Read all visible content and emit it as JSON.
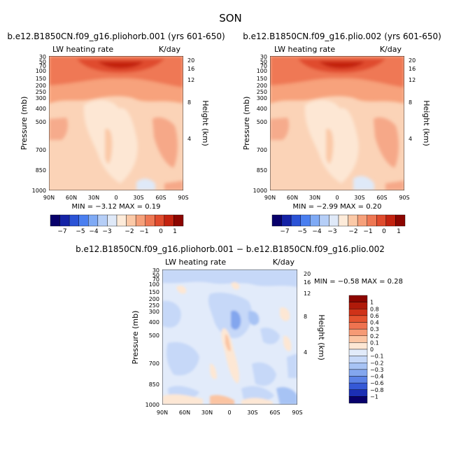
{
  "figure": {
    "title": "SON",
    "panels": [
      {
        "id": "top-left",
        "case": "b.e12.B1850CN.f09_g16.pliohorb.001 (yrs 601-650)",
        "variable": "LW heating rate",
        "units": "K/day",
        "ylabel": "Pressure (mb)",
        "ylabel2": "Height (km)",
        "stats": "MIN = −3.12 MAX = 0.19"
      },
      {
        "id": "top-right",
        "case": "b.e12.B1850CN.f09_g16.plio.002 (yrs 601-650)",
        "variable": "LW heating rate",
        "units": "K/day",
        "ylabel": "Pressure (mb)",
        "ylabel2": "Height (km)",
        "stats": "MIN = −2.99 MAX = 0.20"
      },
      {
        "id": "bottom",
        "case": "b.e12.B1850CN.f09_g16.pliohorb.001 − b.e12.B1850CN.f09_g16.plio.002",
        "variable": "LW heating rate",
        "units": "K/day",
        "ylabel": "Pressure (mb)",
        "ylabel2": "Height (km)",
        "stats": "MIN = −0.58 MAX = 0.28"
      }
    ]
  },
  "chart_data": [
    {
      "type": "heatmap",
      "panel": "top-left",
      "x_ticks": [
        "90N",
        "60N",
        "30N",
        "0",
        "30S",
        "60S",
        "90S"
      ],
      "y_ticks": [
        "30",
        "50",
        "70",
        "100",
        "150",
        "200",
        "250",
        "300",
        "400",
        "500",
        "700",
        "850",
        "1000"
      ],
      "y2_ticks": [
        "20",
        "16",
        "12",
        "8",
        "4"
      ],
      "xlim": [
        90,
        -90
      ],
      "ylim": [
        1000,
        30
      ],
      "y_scale": "log",
      "colorbar": {
        "labels": [
          "−7",
          "−5",
          "−4",
          "−3",
          "−2",
          "−1",
          "0",
          "1"
        ],
        "colors": [
          "#08006b",
          "#1523a6",
          "#2b53d6",
          "#4a7ff0",
          "#7faaf5",
          "#b5cef7",
          "#dfe9f8",
          "#fdebd9",
          "#fbc9a7",
          "#f6a07a",
          "#ee7753",
          "#e04b2d",
          "#c3220f",
          "#8c0500"
        ],
        "orientation": "horizontal"
      },
      "min": -3.12,
      "max": 0.19
    },
    {
      "type": "heatmap",
      "panel": "top-right",
      "x_ticks": [
        "90N",
        "60N",
        "30N",
        "0",
        "30S",
        "60S",
        "90S"
      ],
      "y_ticks": [
        "30",
        "50",
        "70",
        "100",
        "150",
        "200",
        "250",
        "300",
        "400",
        "500",
        "700",
        "850",
        "1000"
      ],
      "y2_ticks": [
        "20",
        "16",
        "12",
        "8",
        "4"
      ],
      "xlim": [
        90,
        -90
      ],
      "ylim": [
        1000,
        30
      ],
      "y_scale": "log",
      "colorbar": {
        "labels": [
          "−7",
          "−5",
          "−4",
          "−3",
          "−2",
          "−1",
          "0",
          "1"
        ],
        "colors": [
          "#08006b",
          "#1523a6",
          "#2b53d6",
          "#4a7ff0",
          "#7faaf5",
          "#b5cef7",
          "#dfe9f8",
          "#fdebd9",
          "#fbc9a7",
          "#f6a07a",
          "#ee7753",
          "#e04b2d",
          "#c3220f",
          "#8c0500"
        ],
        "orientation": "horizontal"
      },
      "min": -2.99,
      "max": 0.2
    },
    {
      "type": "heatmap",
      "panel": "bottom",
      "x_ticks": [
        "90N",
        "60N",
        "30N",
        "0",
        "30S",
        "60S",
        "90S"
      ],
      "y_ticks": [
        "30",
        "50",
        "70",
        "100",
        "150",
        "200",
        "250",
        "300",
        "400",
        "500",
        "700",
        "850",
        "1000"
      ],
      "y2_ticks": [
        "20",
        "16",
        "12",
        "8",
        "4"
      ],
      "xlim": [
        90,
        -90
      ],
      "ylim": [
        1000,
        30
      ],
      "y_scale": "log",
      "colorbar": {
        "labels": [
          "1",
          "0.8",
          "0.6",
          "0.4",
          "0.3",
          "0.2",
          "0.1",
          "0",
          "−0.1",
          "−0.2",
          "−0.3",
          "−0.4",
          "−0.6",
          "−0.8",
          "−1"
        ],
        "colors": [
          "#8c0500",
          "#b01a0a",
          "#cf3218",
          "#e4532f",
          "#ef7350",
          "#f69a75",
          "#fbc4a2",
          "#fde7d4",
          "#e2ebfa",
          "#c6d8f8",
          "#a7c3f4",
          "#83a6ee",
          "#5b82e6",
          "#3559d6",
          "#1b2fb4",
          "#08006b"
        ],
        "orientation": "vertical"
      },
      "min": -0.58,
      "max": 0.28
    }
  ]
}
